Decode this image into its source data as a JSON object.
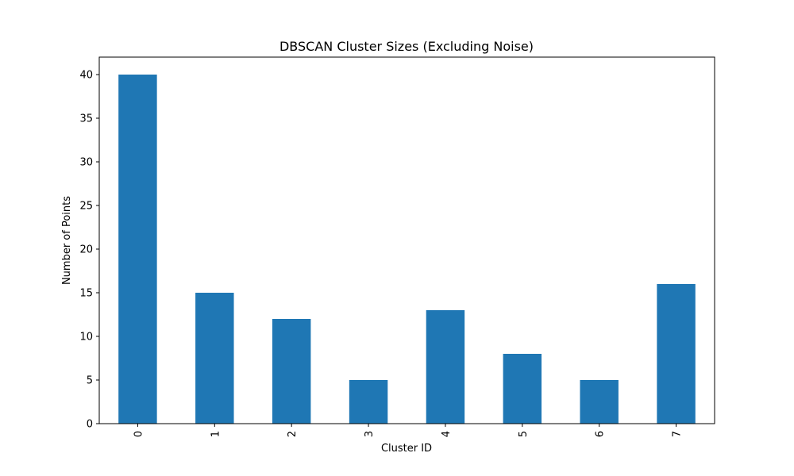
{
  "chart_data": {
    "type": "bar",
    "title": "DBSCAN Cluster Sizes (Excluding Noise)",
    "xlabel": "Cluster ID",
    "ylabel": "Number of Points",
    "categories": [
      "0",
      "1",
      "2",
      "3",
      "4",
      "5",
      "6",
      "7"
    ],
    "values": [
      40,
      15,
      12,
      5,
      13,
      8,
      5,
      16
    ],
    "ylim": [
      0,
      42
    ],
    "yticks": [
      0,
      5,
      10,
      15,
      20,
      25,
      30,
      35,
      40
    ],
    "bar_color": "#1f77b4",
    "grid": false,
    "legend": "none"
  }
}
